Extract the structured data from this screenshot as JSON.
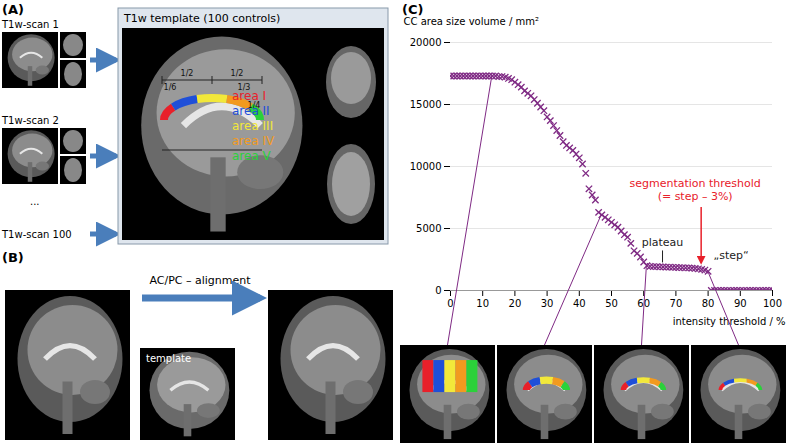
{
  "panel_a": {
    "label": "(A)",
    "scans": [
      "T1w-scan 1",
      "T1w-scan 2",
      "...",
      "T1w-scan 100"
    ],
    "template_title": "T1w template (100 controls)",
    "fractions": [
      "1/2",
      "1/2",
      "1/6",
      "1/3",
      "1/4"
    ],
    "areas": [
      {
        "name": "area I",
        "color": "#e8202a"
      },
      {
        "name": "area II",
        "color": "#1f4fd8"
      },
      {
        "name": "area III",
        "color": "#f2e83a"
      },
      {
        "name": "area IV",
        "color": "#f29a1f"
      },
      {
        "name": "area V",
        "color": "#2bd13a"
      }
    ]
  },
  "panel_b": {
    "label": "(B)",
    "arrow_text": "AC/PC – alignment",
    "template_label": "template"
  },
  "chart_data": {
    "type": "scatter",
    "panel_label": "(C)",
    "ylabel": "CC area size volume / mm²",
    "xlabel": "intensity threshold / %",
    "marker": "x",
    "color": "#7f2a84",
    "grid": "y",
    "xlim": [
      0,
      100
    ],
    "xticks": [
      0,
      10,
      20,
      30,
      40,
      50,
      60,
      70,
      80,
      90,
      100
    ],
    "ylim": [
      0,
      20000
    ],
    "yticks": [
      0,
      5000,
      10000,
      15000,
      20000
    ],
    "x": [
      0,
      1,
      2,
      3,
      4,
      5,
      6,
      7,
      8,
      9,
      10,
      11,
      12,
      13,
      14,
      15,
      16,
      17,
      18,
      19,
      20,
      21,
      22,
      23,
      24,
      25,
      26,
      27,
      28,
      29,
      30,
      31,
      32,
      33,
      34,
      35,
      36,
      37,
      38,
      39,
      40,
      41,
      42,
      43,
      44,
      45,
      46,
      47,
      48,
      49,
      50,
      51,
      52,
      53,
      54,
      55,
      56,
      57,
      58,
      59,
      60,
      61,
      62,
      63,
      64,
      65,
      66,
      67,
      68,
      69,
      70,
      71,
      72,
      73,
      74,
      75,
      76,
      77,
      78,
      79,
      80,
      81,
      82,
      83,
      84,
      85,
      86,
      87,
      88,
      89,
      90,
      91,
      92,
      93,
      94,
      95,
      96,
      97,
      98,
      99,
      100
    ],
    "values": [
      17300,
      17300,
      17300,
      17300,
      17300,
      17300,
      17300,
      17300,
      17300,
      17300,
      17300,
      17300,
      17300,
      17300,
      17300,
      17250,
      17250,
      17200,
      17100,
      17000,
      16800,
      16600,
      16400,
      16100,
      15900,
      15700,
      15400,
      15100,
      14800,
      14500,
      14000,
      13700,
      13300,
      12900,
      12500,
      12000,
      11700,
      11500,
      11300,
      11000,
      10700,
      10200,
      9450,
      8200,
      7700,
      7300,
      6300,
      6100,
      5900,
      5700,
      5500,
      5300,
      5100,
      4800,
      4500,
      4300,
      3800,
      3200,
      3000,
      2700,
      2300,
      2000,
      1950,
      1930,
      1920,
      1910,
      1900,
      1890,
      1880,
      1870,
      1860,
      1850,
      1840,
      1830,
      1820,
      1800,
      1780,
      1750,
      1700,
      1650,
      1550,
      0,
      0,
      0,
      0,
      0,
      0,
      0,
      0,
      0,
      0,
      0,
      0,
      0,
      0,
      0,
      0,
      0,
      0,
      0,
      0
    ],
    "thumbnail_x": [
      13,
      47,
      61,
      80
    ],
    "annotations": [
      {
        "text": [
          "plateau"
        ],
        "x": 66,
        "y": 1900
      },
      {
        "text": [
          "„step“"
        ],
        "x": 80,
        "y": 1550
      },
      {
        "text": [
          "segmentation threshold",
          "(= step – 3%)"
        ],
        "x": 78,
        "y": 1700,
        "color": "#e8202a"
      }
    ]
  }
}
